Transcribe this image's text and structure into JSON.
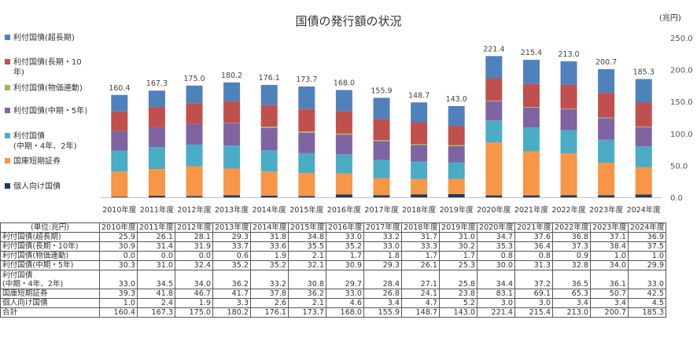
{
  "chart_data": {
    "type": "bar",
    "stacked": true,
    "title": "国債の発行額の状況",
    "unit_label": "(兆円)",
    "ylim": [
      0,
      250
    ],
    "yticks": [
      "0.0",
      "50.0",
      "100.0",
      "150.0",
      "200.0",
      "250.0"
    ],
    "categories": [
      "2010年度",
      "2011年度",
      "2012年度",
      "2013年度",
      "2014年度",
      "2015年度",
      "2016年度",
      "2017年度",
      "2018年度",
      "2019年度",
      "2020年度",
      "2021年度",
      "2022年度",
      "2023年度",
      "2024年度"
    ],
    "series": [
      {
        "name": "個人向け国債",
        "color": "#1f3864",
        "values": [
          1.0,
          2.4,
          1.9,
          3.3,
          2.6,
          2.1,
          4.6,
          3.4,
          4.7,
          5.2,
          3.0,
          3.0,
          3.4,
          3.4,
          4.5
        ]
      },
      {
        "name": "国庫短期証券",
        "color": "#f79646",
        "values": [
          39.3,
          41.8,
          46.7,
          41.7,
          37.8,
          36.2,
          33.0,
          26.8,
          24.1,
          23.8,
          83.1,
          69.1,
          65.3,
          50.7,
          42.5
        ]
      },
      {
        "name": "利付国債\n(中期・4年、2年)",
        "color": "#4bacc6",
        "values": [
          33.0,
          34.5,
          34.0,
          36.2,
          33.2,
          30.8,
          29.7,
          28.4,
          27.1,
          25.8,
          34.4,
          37.2,
          36.5,
          36.1,
          33.0
        ]
      },
      {
        "name": "利付国債(中期・5年)",
        "color": "#8064a2",
        "values": [
          30.3,
          31.0,
          32.4,
          35.2,
          35.2,
          32.1,
          30.9,
          29.3,
          26.1,
          25.3,
          30.0,
          31.3,
          32.8,
          34.0,
          29.9
        ]
      },
      {
        "name": "利付国債(物価連動)",
        "color": "#9bbb59",
        "values": [
          0.0,
          0.0,
          0.0,
          0.6,
          1.9,
          2.1,
          1.7,
          1.8,
          1.7,
          1.7,
          0.8,
          0.8,
          0.9,
          1.0,
          1.0
        ]
      },
      {
        "name": "利付国債(長期・10年)",
        "color": "#c0504d",
        "values": [
          30.9,
          31.4,
          31.9,
          33.7,
          33.6,
          35.5,
          35.2,
          33.0,
          33.3,
          30.2,
          35.3,
          36.4,
          37.3,
          38.4,
          37.5
        ]
      },
      {
        "name": "利付国債(超長期)",
        "color": "#4f81bd",
        "values": [
          25.9,
          26.1,
          28.1,
          29.3,
          31.8,
          34.8,
          33.0,
          33.2,
          31.7,
          31.0,
          34.7,
          37.6,
          36.8,
          37.1,
          36.9
        ]
      }
    ],
    "totals": [
      "160.4",
      "167.3",
      "175.0",
      "180.2",
      "176.1",
      "173.7",
      "168.0",
      "155.9",
      "148.7",
      "143.0",
      "221.4",
      "215.4",
      "213.0",
      "200.7",
      "185.3"
    ],
    "legend": [
      {
        "label": "利付国債(超長期)",
        "color": "#4f81bd"
      },
      {
        "label": "利付国債(長期・10\n年)",
        "color": "#c0504d"
      },
      {
        "label": "利付国債(物価連動)",
        "color": "#9bbb59"
      },
      {
        "label": "利付国債(中期・5年)",
        "color": "#8064a2"
      },
      {
        "label": "利付国債\n(中期・4年、2年)",
        "color": "#4bacc6"
      },
      {
        "label": "国庫短期証券",
        "color": "#f79646"
      },
      {
        "label": "個人向け国債",
        "color": "#1f3864"
      }
    ],
    "legend_position": "left",
    "grid": false
  },
  "table": {
    "header_unit": "(単位:兆円)",
    "columns": [
      "2010年度",
      "2011年度",
      "2012年度",
      "2013年度",
      "2014年度",
      "2015年度",
      "2016年度",
      "2017年度",
      "2018年度",
      "2019年度",
      "2020年度",
      "2021年度",
      "2022年度",
      "2023年度",
      "2024年度"
    ],
    "rows": [
      {
        "label": "利付国債(超長期)",
        "values": [
          "25.9",
          "26.1",
          "28.1",
          "29.3",
          "31.8",
          "34.8",
          "33.0",
          "33.2",
          "31.7",
          "31.0",
          "34.7",
          "37.6",
          "36.8",
          "37.1",
          "36.9"
        ]
      },
      {
        "label": "利付国債(長期・10年)",
        "values": [
          "30.9",
          "31.4",
          "31.9",
          "33.7",
          "33.6",
          "35.5",
          "35.2",
          "33.0",
          "33.3",
          "30.2",
          "35.3",
          "36.4",
          "37.3",
          "38.4",
          "37.5"
        ]
      },
      {
        "label": "利付国債(物価連動)",
        "values": [
          "0.0",
          "0.0",
          "0.0",
          "0.6",
          "1.9",
          "2.1",
          "1.7",
          "1.8",
          "1.7",
          "1.7",
          "0.8",
          "0.8",
          "0.9",
          "1.0",
          "1.0"
        ]
      },
      {
        "label": "利付国債(中期・5年)",
        "values": [
          "30.3",
          "31.0",
          "32.4",
          "35.2",
          "35.2",
          "32.1",
          "30.9",
          "29.3",
          "26.1",
          "25.3",
          "30.0",
          "31.3",
          "32.8",
          "34.0",
          "29.9"
        ]
      },
      {
        "label": "利付国債\n(中期・4年、2年)",
        "values": [
          "33.0",
          "34.5",
          "34.0",
          "36.2",
          "33.2",
          "30.8",
          "29.7",
          "28.4",
          "27.1",
          "25.8",
          "34.4",
          "37.2",
          "36.5",
          "36.1",
          "33.0"
        ],
        "tall": true
      },
      {
        "label": "国庫短期証券",
        "values": [
          "39.3",
          "41.8",
          "46.7",
          "41.7",
          "37.8",
          "36.2",
          "33.0",
          "26.8",
          "24.1",
          "23.8",
          "83.1",
          "69.1",
          "65.3",
          "50.7",
          "42.5"
        ]
      },
      {
        "label": "個人向け国債",
        "values": [
          "1.0",
          "2.4",
          "1.9",
          "3.3",
          "2.6",
          "2.1",
          "4.6",
          "3.4",
          "4.7",
          "5.2",
          "3.0",
          "3.0",
          "3.4",
          "3.4",
          "4.5"
        ]
      },
      {
        "label": "合計",
        "values": [
          "160.4",
          "167.3",
          "175.0",
          "180.2",
          "176.1",
          "173.7",
          "168.0",
          "155.9",
          "148.7",
          "143.0",
          "221.4",
          "215.4",
          "213.0",
          "200.7",
          "185.3"
        ]
      }
    ]
  }
}
